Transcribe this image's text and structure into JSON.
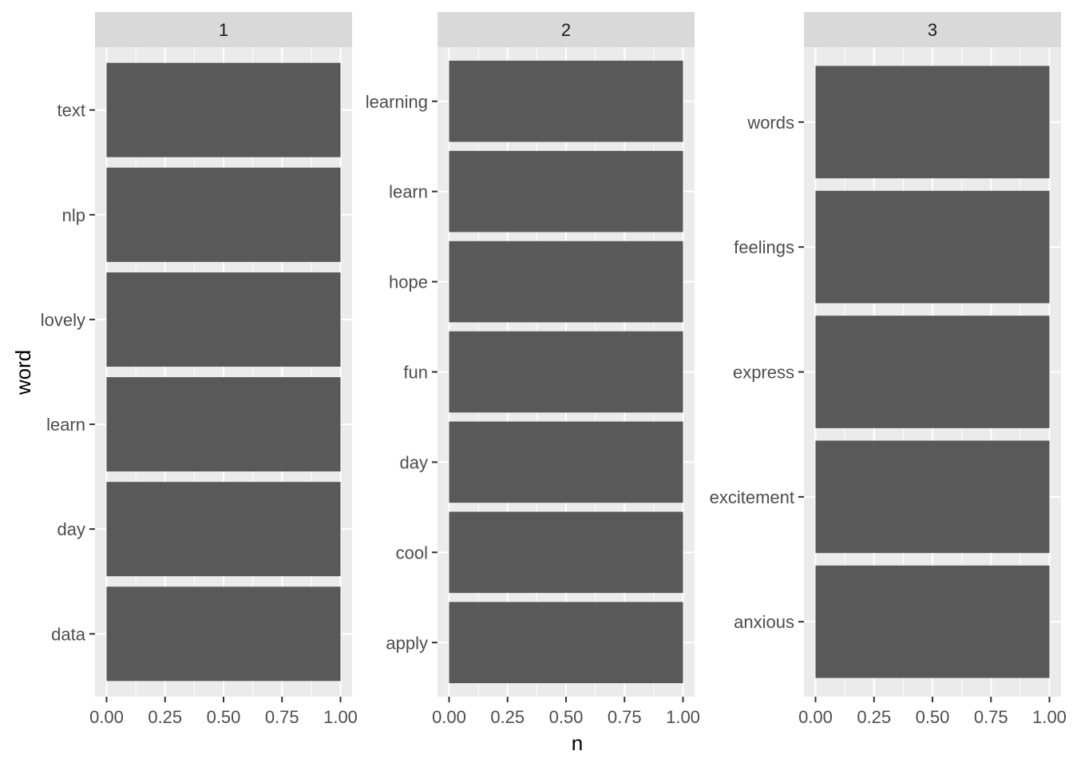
{
  "chart_data": {
    "type": "bar",
    "orientation": "horizontal",
    "xlabel": "n",
    "ylabel": "word",
    "xlim": [
      0,
      1
    ],
    "x_ticks": [
      "0.00",
      "0.25",
      "0.50",
      "0.75",
      "1.00"
    ],
    "grid": true,
    "colors": {
      "bar": "#595959",
      "panel_bg": "#ebebeb",
      "strip_bg": "#d9d9d9",
      "grid": "#ffffff",
      "tick_text": "#4d4d4d",
      "title_text": "#000000",
      "strip_text": "#1a1a1a"
    },
    "facets": [
      {
        "label": "1",
        "categories": [
          "text",
          "nlp",
          "lovely",
          "learn",
          "day",
          "data"
        ],
        "values": [
          1,
          1,
          1,
          1,
          1,
          1
        ]
      },
      {
        "label": "2",
        "categories": [
          "learning",
          "learn",
          "hope",
          "fun",
          "day",
          "cool",
          "apply"
        ],
        "values": [
          1,
          1,
          1,
          1,
          1,
          1,
          1
        ]
      },
      {
        "label": "3",
        "categories": [
          "words",
          "feelings",
          "express",
          "excitement",
          "anxious"
        ],
        "values": [
          1,
          1,
          1,
          1,
          1
        ]
      }
    ]
  }
}
